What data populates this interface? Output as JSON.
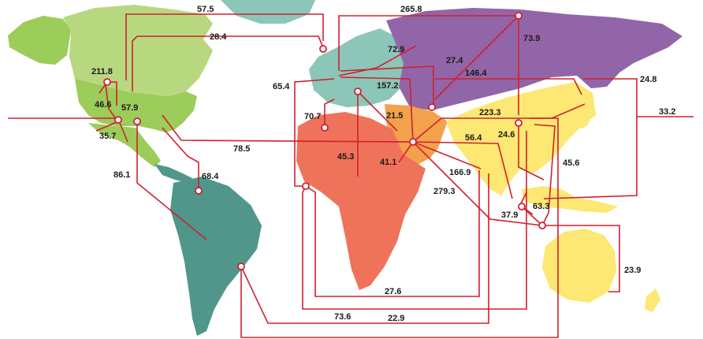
{
  "map": {
    "colors": {
      "flow": "#d0202f",
      "north_america_canada": "#b8d880",
      "north_america_alaska": "#9ccc5a",
      "usa": "#9ccc5a",
      "mexico": "#9ccc5a",
      "central_south_america": "#50968a",
      "greenland": "#8cc6b8",
      "europe": "#8cc6b8",
      "russia_cis": "#9265a8",
      "middle_east": "#f2a24c",
      "africa": "#ef735a",
      "asia_pacific": "#fce872",
      "land_light": "#dcebc0"
    },
    "flow_labels": [
      "57.5",
      "28.4",
      "211.8",
      "46.6",
      "57.9",
      "35.7",
      "86.1",
      "68.4",
      "78.5",
      "65.4",
      "70.7",
      "45.3",
      "72.9",
      "27.4",
      "157.2",
      "21.5",
      "41.1",
      "265.8",
      "73.9",
      "146.4",
      "223.3",
      "24.6",
      "56.4",
      "166.9",
      "279.3",
      "63.3",
      "37.9",
      "24.8",
      "33.2",
      "45.6",
      "23.9",
      "27.6",
      "73.6",
      "22.9"
    ]
  }
}
